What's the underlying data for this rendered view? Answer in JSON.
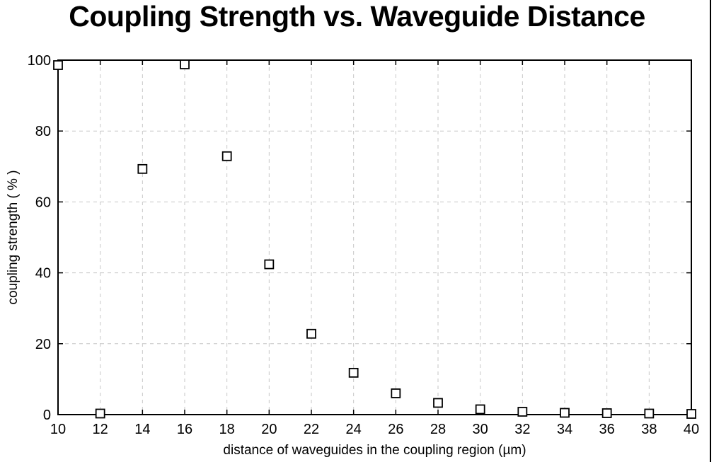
{
  "figure": {
    "background": "#ffffff",
    "right_border_color": "#000000"
  },
  "chart_data": {
    "type": "scatter",
    "title": "Coupling Strength vs. Waveguide Distance",
    "xlabel": "distance of waveguides in the coupling region (µm)",
    "ylabel": "coupling strength ( % )",
    "x": [
      10,
      12,
      14,
      16,
      18,
      20,
      22,
      24,
      26,
      28,
      30,
      32,
      34,
      36,
      38,
      40
    ],
    "y": [
      98.6,
      0.3,
      69.3,
      98.8,
      72.9,
      42.4,
      22.8,
      11.8,
      6.0,
      3.3,
      1.5,
      0.8,
      0.5,
      0.4,
      0.3,
      0.2
    ],
    "xlim": [
      10,
      40
    ],
    "ylim": [
      0,
      100
    ],
    "xticks": [
      10,
      12,
      14,
      16,
      18,
      20,
      22,
      24,
      26,
      28,
      30,
      32,
      34,
      36,
      38,
      40
    ],
    "yticks": [
      0,
      20,
      40,
      60,
      80,
      100
    ],
    "grid": "dashed",
    "grid_color": "#c6c6c6",
    "axis_color": "#000000",
    "marker": "open-square",
    "marker_color": "#000000",
    "marker_fill": "#ffffff",
    "legend": "none"
  }
}
